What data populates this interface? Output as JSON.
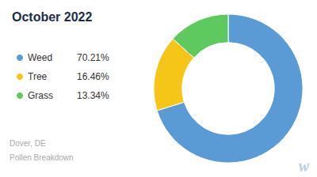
{
  "chart_data": {
    "type": "pie",
    "title": "October 2022",
    "categories": [
      "Weed",
      "Tree",
      "Grass"
    ],
    "values": [
      70.21,
      16.46,
      13.34
    ],
    "value_labels": [
      "70.21%",
      "16.46%",
      "13.34%"
    ],
    "colors": [
      "#5b9bd5",
      "#f5c518",
      "#5ec95e"
    ],
    "legend": "left",
    "data_labels": false,
    "annotations": [
      "Dover, DE",
      "Pollen Breakdown",
      "w"
    ]
  }
}
